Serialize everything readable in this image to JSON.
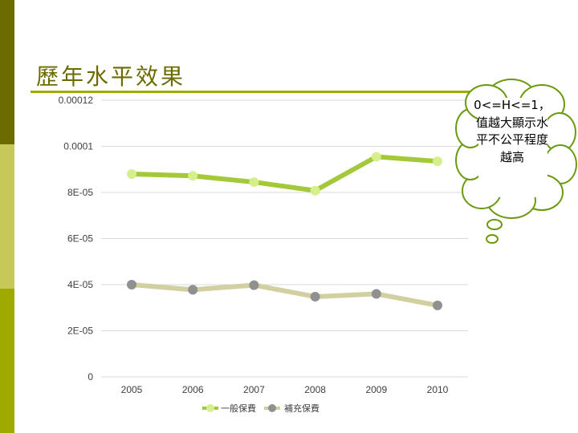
{
  "slide": {
    "title": "歷年水平效果"
  },
  "callout": {
    "text": "0<=H<=1，值越大顯示水平不公平程度越高"
  },
  "colors": {
    "series1": "#a3c93a",
    "series1_marker": "#d4ef8c",
    "series2": "#d2d0a0",
    "series2_marker": "#909090",
    "grid": "#d9d9d9",
    "accent": "#9faa00"
  },
  "chart_data": {
    "type": "line",
    "title": "",
    "xlabel": "",
    "ylabel": "",
    "categories": [
      "2005",
      "2006",
      "2007",
      "2008",
      "2009",
      "2010"
    ],
    "y_ticks": [
      "0",
      "2E-05",
      "4E-05",
      "6E-05",
      "8E-05",
      "0.0001",
      "0.00012"
    ],
    "ylim": [
      0,
      0.00012
    ],
    "grid": true,
    "legend": "bottom",
    "series": [
      {
        "name": "一般保費",
        "values": [
          8.8e-05,
          8.72e-05,
          8.45e-05,
          8.08e-05,
          9.55e-05,
          9.35e-05
        ]
      },
      {
        "name": "補充保費",
        "values": [
          4e-05,
          3.78e-05,
          3.98e-05,
          3.48e-05,
          3.6e-05,
          3.1e-05
        ]
      }
    ]
  }
}
